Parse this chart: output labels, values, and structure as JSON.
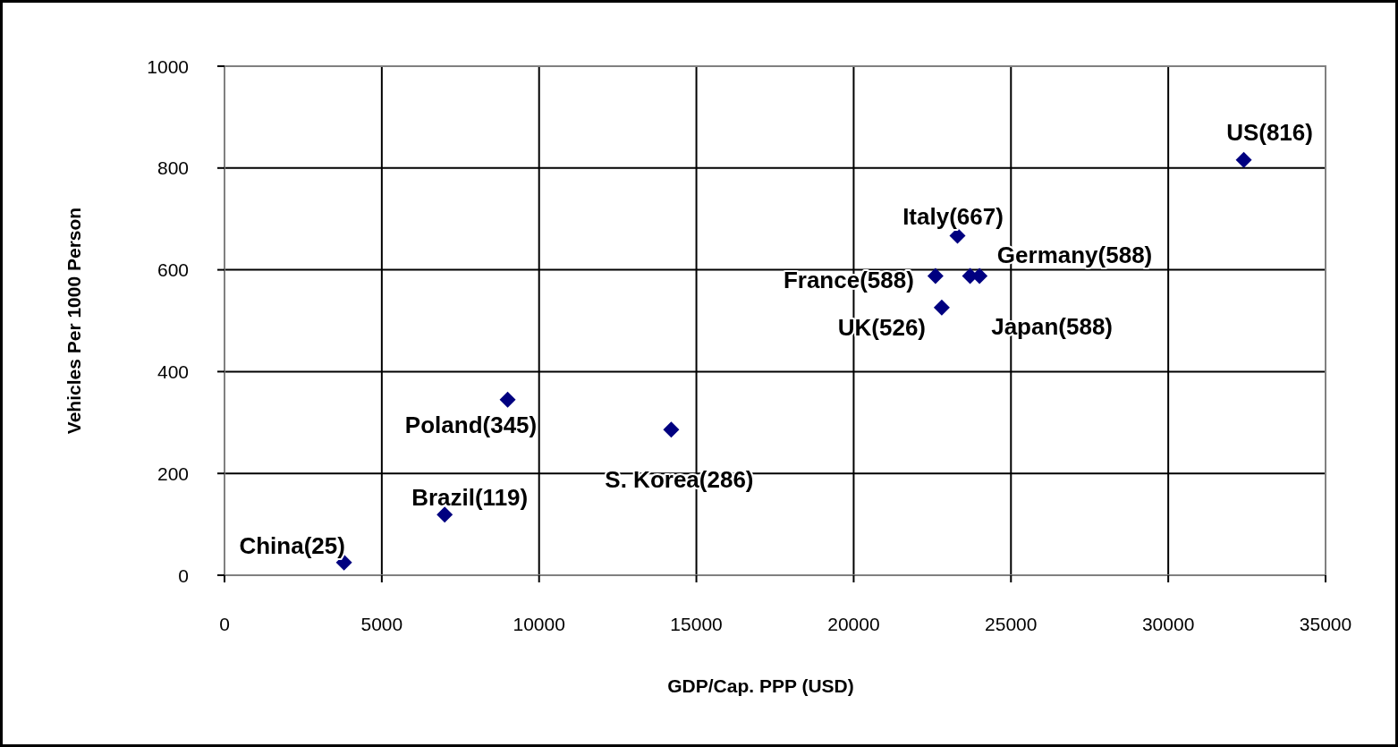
{
  "chart_data": {
    "type": "scatter",
    "xlabel": "GDP/Cap. PPP (USD)",
    "ylabel": "Vehicles Per 1000 Person",
    "x": [
      3800,
      7000,
      9000,
      14200,
      22800,
      22600,
      23300,
      23700,
      24000,
      32400
    ],
    "values": [
      25,
      119,
      345,
      286,
      526,
      588,
      667,
      588,
      588,
      816
    ],
    "color": "#000080",
    "marker": "diamond",
    "grid": true,
    "xlim": [
      0,
      35000
    ],
    "ylim": [
      0,
      1000
    ],
    "xticks": [
      0,
      5000,
      10000,
      15000,
      20000,
      25000,
      30000,
      35000
    ],
    "yticks": [
      0,
      200,
      400,
      600,
      800,
      1000
    ],
    "annotations": [
      {
        "text": "China(25)",
        "x": 3800,
        "y": 25
      },
      {
        "text": "Brazil(119)",
        "x": 7000,
        "y": 119
      },
      {
        "text": "Poland(345)",
        "x": 9000,
        "y": 345
      },
      {
        "text": "S. Korea(286)",
        "x": 14200,
        "y": 286
      },
      {
        "text": "UK(526)",
        "x": 22800,
        "y": 526
      },
      {
        "text": "France(588)",
        "x": 22600,
        "y": 588
      },
      {
        "text": "Italy(667)",
        "x": 23300,
        "y": 667
      },
      {
        "text": "Germany(588)",
        "x": 23700,
        "y": 588
      },
      {
        "text": "Japan(588)",
        "x": 24000,
        "y": 588
      },
      {
        "text": "US(816)",
        "x": 32400,
        "y": 816
      }
    ]
  }
}
